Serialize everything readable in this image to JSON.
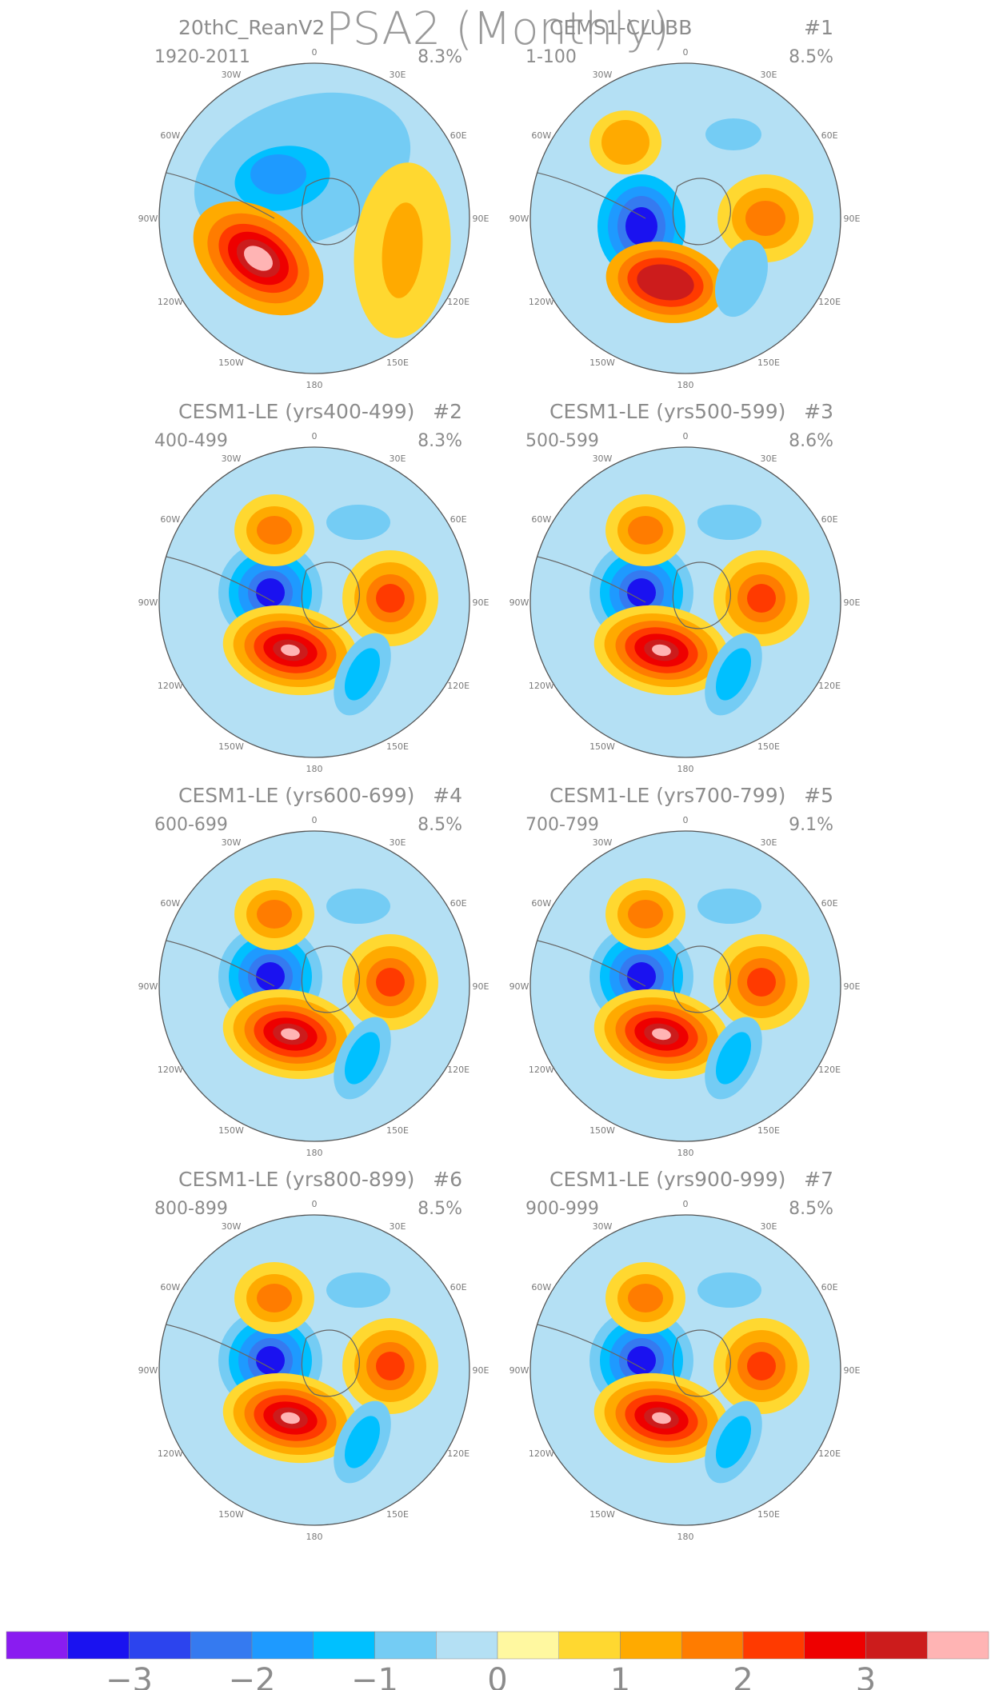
{
  "figure": {
    "title": "PSA2 (Monthly)",
    "panels": [
      {
        "title": "20thC_ReanV2",
        "member": "",
        "period": "1920-2011",
        "variance": "8.3%"
      },
      {
        "title": "CEMS1-CLUBB",
        "member": "#1",
        "period": "1-100",
        "variance": "8.5%"
      },
      {
        "title": "CESM1-LE (yrs400-499)",
        "member": "#2",
        "period": "400-499",
        "variance": "8.3%"
      },
      {
        "title": "CESM1-LE (yrs500-599)",
        "member": "#3",
        "period": "500-599",
        "variance": "8.6%"
      },
      {
        "title": "CESM1-LE (yrs600-699)",
        "member": "#4",
        "period": "600-699",
        "variance": "8.5%"
      },
      {
        "title": "CESM1-LE (yrs700-799)",
        "member": "#5",
        "period": "700-799",
        "variance": "9.1%"
      },
      {
        "title": "CESM1-LE (yrs800-899)",
        "member": "#6",
        "period": "800-899",
        "variance": "8.5%"
      },
      {
        "title": "CESM1-LE (yrs900-999)",
        "member": "#7",
        "period": "900-999",
        "variance": "8.5%"
      }
    ],
    "longitude_labels": [
      "0",
      "30E",
      "60E",
      "90E",
      "120E",
      "150E",
      "180",
      "150W",
      "120W",
      "90W",
      "60W",
      "30W"
    ],
    "colorbar": {
      "colors": [
        "#8a1cf0",
        "#1a12f0",
        "#2c44ee",
        "#357af0",
        "#1e9aff",
        "#00c0ff",
        "#74ccf4",
        "#b4e0f4",
        "#fff8a0",
        "#ffd830",
        "#ffaa00",
        "#ff7c00",
        "#ff3a00",
        "#ee0000",
        "#cc1c1c",
        "#ffb4b4"
      ],
      "tick_labels": [
        "-3",
        "-2",
        "-1",
        "0",
        "1",
        "2",
        "3"
      ]
    }
  }
}
